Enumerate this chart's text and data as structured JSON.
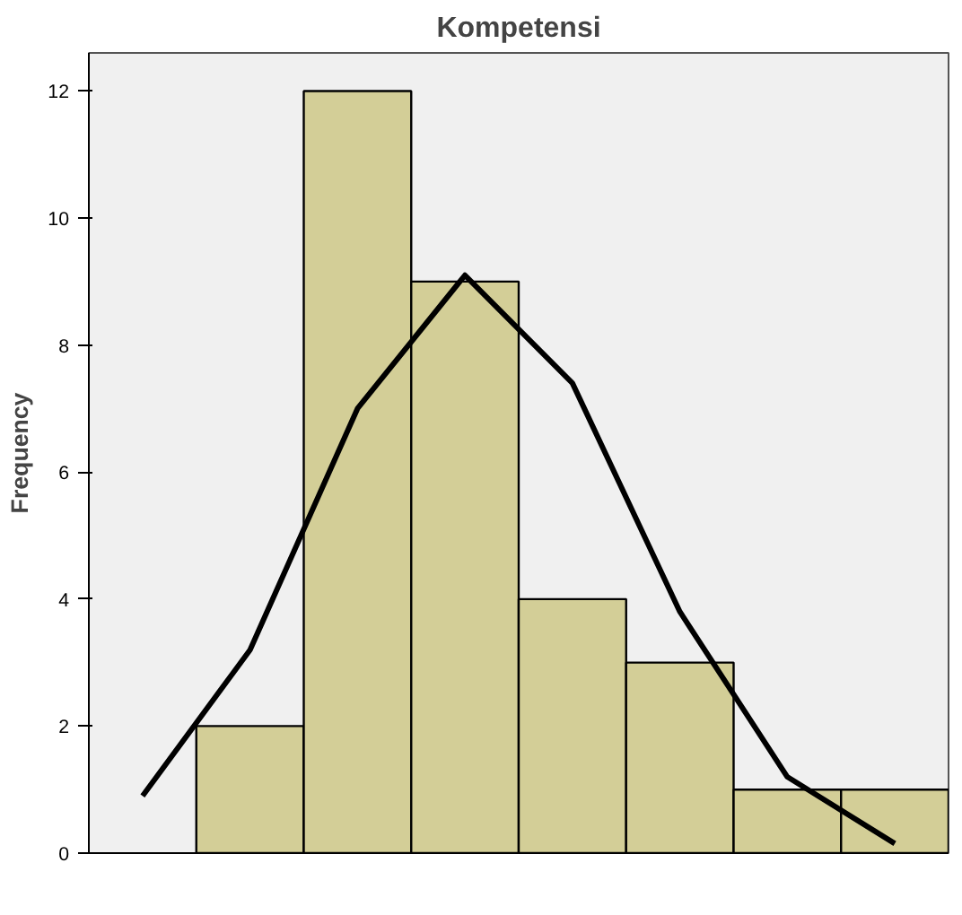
{
  "chart_data": {
    "type": "bar",
    "title": "Kompetensi",
    "ylabel": "Frequency",
    "categories": [
      null,
      null,
      null,
      null,
      null,
      null,
      null,
      null
    ],
    "series": [
      {
        "color": "#d3ce97",
        "values": [
          null,
          2,
          12,
          9,
          4,
          3,
          1,
          1
        ]
      },
      {
        "type": "line",
        "color": "#000000",
        "values": [
          0.9,
          3.2,
          7.0,
          9.1,
          7.4,
          3.8,
          1.2,
          0.15
        ]
      }
    ],
    "ylim": [
      0,
      12.6
    ],
    "yticks": [
      0,
      2,
      4,
      6,
      8,
      10,
      12
    ],
    "tick_labels": "y",
    "grid": false,
    "marker": "none",
    "line_style": "solid"
  }
}
